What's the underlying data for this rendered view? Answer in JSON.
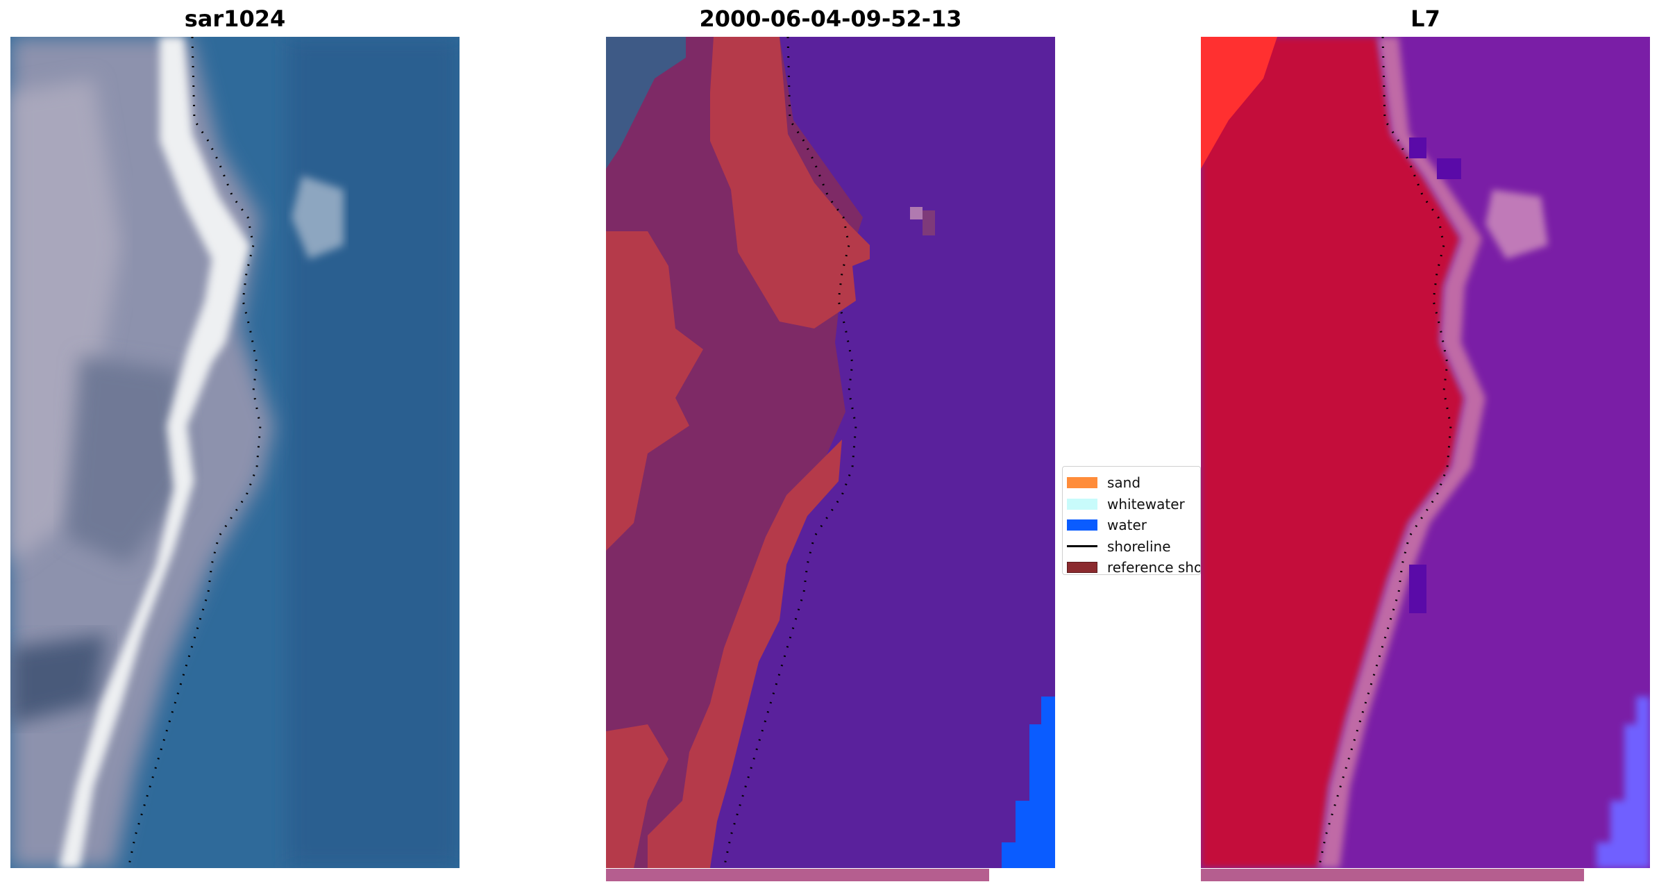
{
  "panels": [
    {
      "title": "sar1024"
    },
    {
      "title": "2000-06-04-09-52-13"
    },
    {
      "title": "L7"
    }
  ],
  "legend": {
    "items": [
      {
        "label": "sand",
        "color": "#ff8c3a"
      },
      {
        "label": "whitewater",
        "color": "#c8fbfb"
      },
      {
        "label": "water",
        "color": "#0a5cff"
      },
      {
        "label": "shoreline",
        "color": "#000000"
      },
      {
        "label": "reference shoreline",
        "color": "#8b2a2e"
      }
    ]
  },
  "colors": {
    "classified_water": "#5a219c",
    "classified_sand_overlay": "#b53a4a",
    "classified_land": "#7e2a66",
    "false_color_land": "#c4103a",
    "false_color_water": "#7a1ea6",
    "reference_bar": "#b55e8f"
  }
}
